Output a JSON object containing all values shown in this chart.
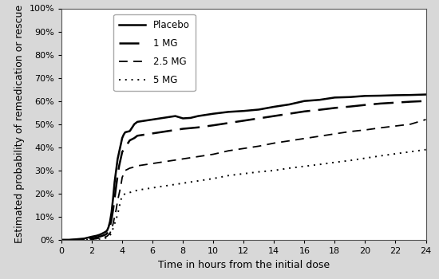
{
  "xlabel": "Time in hours from the initial dose",
  "ylabel": "Estimated probability of remedication or rescue",
  "xlim": [
    0,
    24
  ],
  "ylim": [
    0,
    1.0
  ],
  "yticks": [
    0,
    0.1,
    0.2,
    0.3,
    0.4,
    0.5,
    0.6,
    0.7,
    0.8,
    0.9,
    1.0
  ],
  "xticks": [
    0,
    2,
    4,
    6,
    8,
    10,
    12,
    14,
    16,
    18,
    20,
    22,
    24
  ],
  "background_color": "#f0f0f0",
  "plot_bg": "#ffffff",
  "series": [
    {
      "label": "Placebo",
      "linestyle": "solid",
      "linewidth": 1.8,
      "color": "#000000",
      "x": [
        0,
        0.5,
        1.0,
        1.5,
        2.0,
        2.3,
        2.5,
        2.7,
        2.9,
        3.0,
        3.1,
        3.2,
        3.3,
        3.4,
        3.5,
        3.6,
        3.7,
        3.8,
        3.9,
        4.0,
        4.1,
        4.2,
        4.5,
        4.8,
        5.0,
        5.5,
        6.0,
        6.5,
        7.0,
        7.5,
        8.0,
        8.5,
        9.0,
        10.0,
        11.0,
        12.0,
        13.0,
        14.0,
        15.0,
        16.0,
        17.0,
        18.0,
        19.0,
        20.0,
        21.0,
        22.0,
        23.0,
        24.0
      ],
      "y": [
        0,
        0.0,
        0.003,
        0.006,
        0.014,
        0.018,
        0.022,
        0.028,
        0.035,
        0.04,
        0.055,
        0.08,
        0.12,
        0.18,
        0.25,
        0.3,
        0.35,
        0.38,
        0.41,
        0.44,
        0.455,
        0.465,
        0.47,
        0.5,
        0.51,
        0.515,
        0.52,
        0.525,
        0.53,
        0.535,
        0.525,
        0.527,
        0.535,
        0.545,
        0.553,
        0.557,
        0.563,
        0.575,
        0.585,
        0.6,
        0.605,
        0.615,
        0.617,
        0.622,
        0.623,
        0.625,
        0.626,
        0.628
      ]
    },
    {
      "label": "1 MG",
      "linestyle": "dashed_heavy",
      "linewidth": 1.8,
      "color": "#000000",
      "dash_pattern": [
        10,
        4
      ],
      "x": [
        0,
        0.5,
        1.0,
        1.5,
        2.0,
        2.3,
        2.5,
        2.7,
        2.9,
        3.0,
        3.1,
        3.2,
        3.3,
        3.4,
        3.5,
        3.6,
        3.7,
        3.8,
        3.9,
        4.0,
        4.2,
        4.5,
        4.8,
        5.0,
        5.5,
        6.0,
        6.5,
        7.0,
        7.5,
        8.0,
        8.5,
        9.0,
        10.0,
        11.0,
        12.0,
        13.0,
        14.0,
        15.0,
        16.0,
        17.0,
        18.0,
        19.0,
        20.0,
        21.0,
        22.0,
        23.0,
        24.0
      ],
      "y": [
        0,
        0.0,
        0.001,
        0.003,
        0.007,
        0.01,
        0.014,
        0.018,
        0.023,
        0.028,
        0.04,
        0.06,
        0.09,
        0.13,
        0.18,
        0.23,
        0.28,
        0.32,
        0.35,
        0.38,
        0.4,
        0.43,
        0.44,
        0.45,
        0.455,
        0.46,
        0.465,
        0.47,
        0.475,
        0.48,
        0.483,
        0.486,
        0.495,
        0.505,
        0.515,
        0.525,
        0.535,
        0.545,
        0.555,
        0.562,
        0.57,
        0.576,
        0.583,
        0.589,
        0.593,
        0.597,
        0.6
      ]
    },
    {
      "label": "2.5 MG",
      "linestyle": "dashed_light",
      "linewidth": 1.3,
      "color": "#000000",
      "dash_pattern": [
        6,
        4
      ],
      "x": [
        0,
        0.5,
        1.0,
        1.5,
        2.0,
        2.3,
        2.5,
        2.7,
        2.9,
        3.0,
        3.1,
        3.2,
        3.3,
        3.4,
        3.5,
        3.6,
        3.7,
        3.8,
        3.9,
        4.0,
        4.2,
        4.5,
        4.8,
        5.0,
        5.5,
        6.0,
        6.5,
        7.0,
        7.5,
        8.0,
        8.5,
        9.0,
        10.0,
        11.0,
        12.0,
        13.0,
        14.0,
        15.0,
        16.0,
        17.0,
        18.0,
        19.0,
        20.0,
        21.0,
        22.0,
        23.0,
        24.0
      ],
      "y": [
        0,
        0.0,
        0.0,
        0.001,
        0.003,
        0.005,
        0.008,
        0.01,
        0.013,
        0.016,
        0.022,
        0.03,
        0.045,
        0.07,
        0.1,
        0.13,
        0.17,
        0.2,
        0.23,
        0.27,
        0.3,
        0.31,
        0.315,
        0.32,
        0.325,
        0.33,
        0.335,
        0.34,
        0.345,
        0.35,
        0.355,
        0.36,
        0.37,
        0.385,
        0.395,
        0.405,
        0.418,
        0.428,
        0.438,
        0.448,
        0.458,
        0.468,
        0.475,
        0.484,
        0.492,
        0.5,
        0.52
      ]
    },
    {
      "label": "5 MG",
      "linestyle": "dotted",
      "linewidth": 1.4,
      "color": "#000000",
      "dot_pattern": [
        1,
        3
      ],
      "x": [
        0,
        0.5,
        1.0,
        1.5,
        2.0,
        2.3,
        2.5,
        2.7,
        2.9,
        3.0,
        3.1,
        3.2,
        3.3,
        3.4,
        3.5,
        3.6,
        3.7,
        3.8,
        3.9,
        4.0,
        4.2,
        4.5,
        4.8,
        5.0,
        5.5,
        6.0,
        6.5,
        7.0,
        7.5,
        8.0,
        8.5,
        9.0,
        10.0,
        11.0,
        12.0,
        13.0,
        14.0,
        15.0,
        16.0,
        17.0,
        18.0,
        19.0,
        20.0,
        21.0,
        22.0,
        23.0,
        24.0
      ],
      "y": [
        0,
        0.0,
        0.0,
        0.0,
        0.001,
        0.002,
        0.004,
        0.006,
        0.008,
        0.01,
        0.014,
        0.02,
        0.03,
        0.05,
        0.07,
        0.09,
        0.11,
        0.14,
        0.17,
        0.19,
        0.2,
        0.205,
        0.21,
        0.215,
        0.22,
        0.225,
        0.23,
        0.235,
        0.24,
        0.245,
        0.25,
        0.255,
        0.265,
        0.278,
        0.286,
        0.294,
        0.3,
        0.31,
        0.318,
        0.326,
        0.335,
        0.343,
        0.353,
        0.363,
        0.372,
        0.381,
        0.39
      ]
    }
  ],
  "legend_fontsize": 8.5,
  "xlabel_fontsize": 9,
  "ylabel_fontsize": 9,
  "tick_fontsize": 8
}
